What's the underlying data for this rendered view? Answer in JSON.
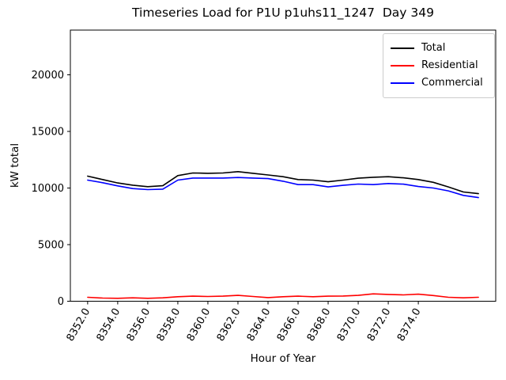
{
  "chart_data": {
    "type": "line",
    "title": "Timeseries Load for P1U p1uhs11_1247  Day 349",
    "xlabel": "Hour of Year",
    "ylabel": "kW total",
    "grid": false,
    "legend": {
      "position": "upper right"
    },
    "xlim": [
      8350.85,
      8379.15
    ],
    "ylim": [
      0,
      23950
    ],
    "xticks": [
      8352,
      8354,
      8356,
      8358,
      8360,
      8362,
      8364,
      8366,
      8368,
      8370,
      8372,
      8374
    ],
    "xtick_labels": [
      "8352.0",
      "8354.0",
      "8356.0",
      "8358.0",
      "8360.0",
      "8362.0",
      "8364.0",
      "8366.0",
      "8368.0",
      "8370.0",
      "8372.0",
      "8374.0"
    ],
    "yticks": [
      0,
      5000,
      10000,
      15000,
      20000
    ],
    "ytick_labels": [
      "0",
      "5000",
      "10000",
      "15000",
      "20000"
    ],
    "x": [
      8352,
      8353,
      8354,
      8355,
      8356,
      8357,
      8358,
      8359,
      8360,
      8361,
      8362,
      8363,
      8364,
      8365,
      8366,
      8367,
      8368,
      8369,
      8370,
      8371,
      8372,
      8373,
      8374,
      8375,
      8376,
      8377,
      8378
    ],
    "series": [
      {
        "name": "Total",
        "color": "#000000",
        "values": [
          11050,
          10750,
          10450,
          10250,
          10120,
          10200,
          11100,
          11330,
          11300,
          11330,
          11450,
          11300,
          11150,
          11000,
          10750,
          10700,
          10550,
          10700,
          10870,
          10950,
          11000,
          10900,
          10750,
          10500,
          10100,
          9650,
          9500
        ]
      },
      {
        "name": "Residential",
        "color": "#ff0000",
        "values": [
          350,
          280,
          260,
          300,
          260,
          300,
          400,
          450,
          420,
          450,
          520,
          420,
          320,
          400,
          450,
          400,
          450,
          460,
          520,
          650,
          600,
          560,
          620,
          500,
          350,
          300,
          350
        ]
      },
      {
        "name": "Commercial",
        "color": "#0000ff",
        "values": [
          10700,
          10470,
          10190,
          9950,
          9860,
          9900,
          10700,
          10880,
          10880,
          10880,
          10930,
          10880,
          10830,
          10600,
          10300,
          10300,
          10100,
          10240,
          10350,
          10300,
          10400,
          10340,
          10130,
          10000,
          9750,
          9350,
          9150
        ]
      }
    ]
  }
}
